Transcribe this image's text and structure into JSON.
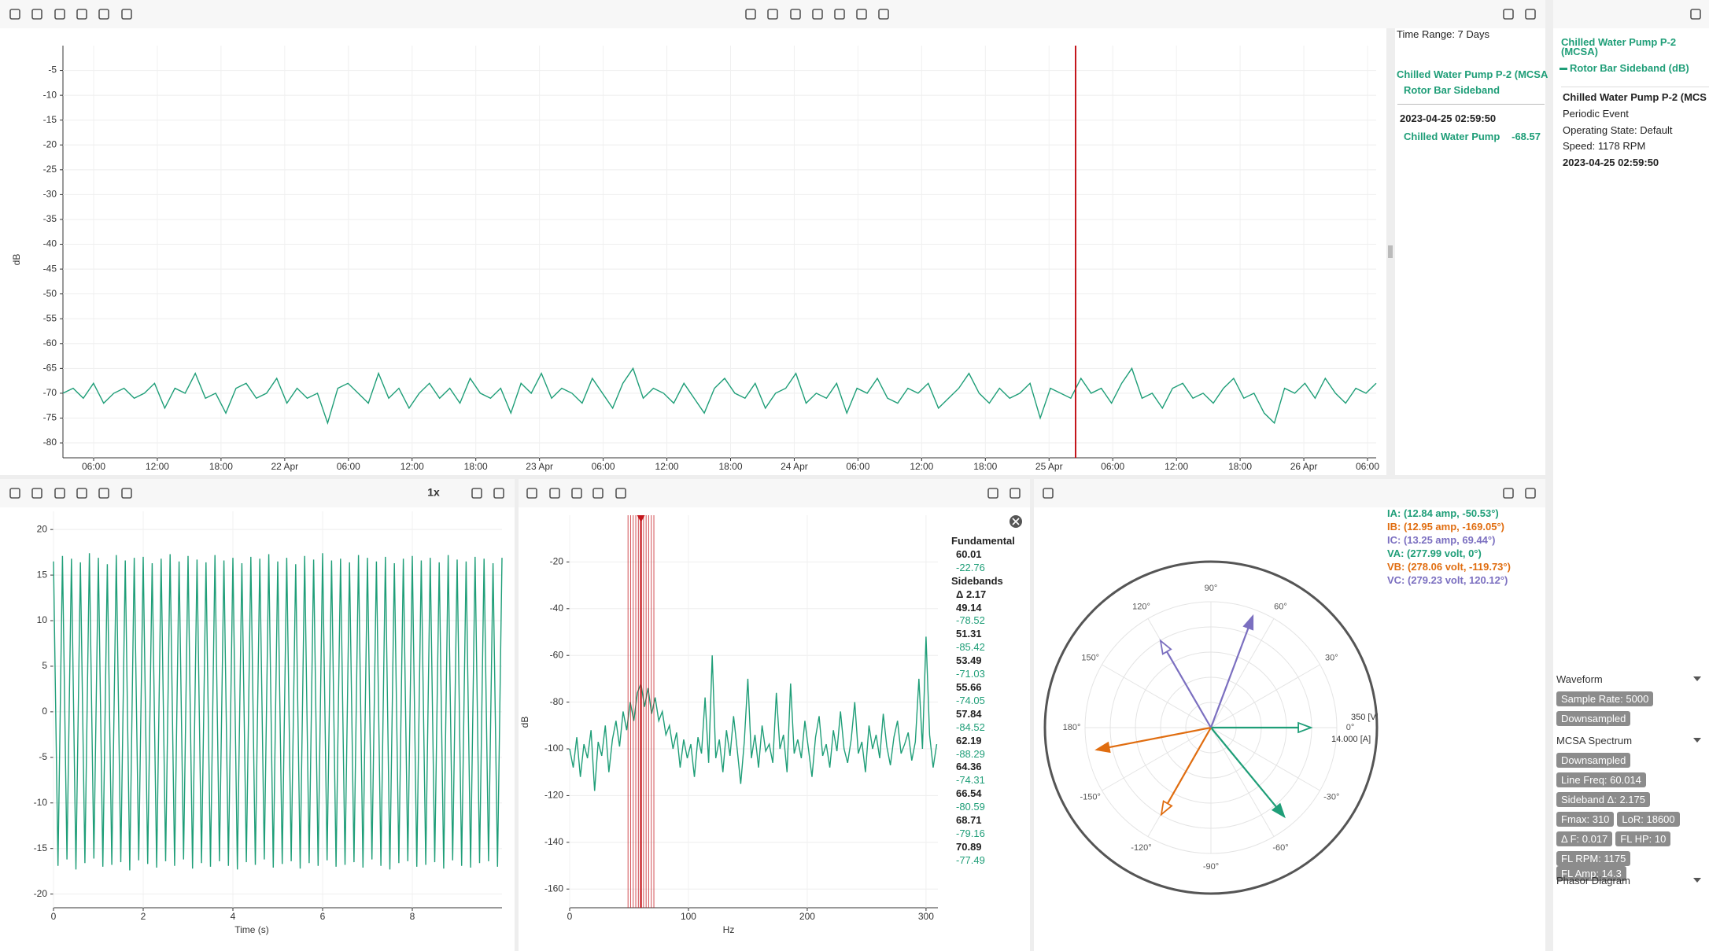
{
  "trend": {
    "type": "line",
    "y_label": "dB",
    "ylim": [
      -83,
      0
    ],
    "yticks": [
      -5,
      -10,
      -15,
      -20,
      -25,
      -30,
      -35,
      -40,
      -45,
      -50,
      -55,
      -60,
      -65,
      -70,
      -75,
      -80
    ],
    "xticks": [
      "06:00",
      "12:00",
      "18:00",
      "22 Apr",
      "06:00",
      "12:00",
      "18:00",
      "23 Apr",
      "06:00",
      "12:00",
      "18:00",
      "24 Apr",
      "06:00",
      "12:00",
      "18:00",
      "25 Apr",
      "06:00",
      "12:00",
      "18:00",
      "26 Apr",
      "06:00"
    ],
    "color": "#1f9e78",
    "cursor_color": "#c4161c",
    "values": [
      -70,
      -69,
      -71,
      -68,
      -72,
      -70,
      -69,
      -71,
      -70,
      -68,
      -73,
      -69,
      -70,
      -66,
      -71,
      -70,
      -74,
      -69,
      -68,
      -71,
      -70,
      -67,
      -72,
      -69,
      -71,
      -70,
      -76,
      -69,
      -68,
      -70,
      -72,
      -66,
      -71,
      -69,
      -73,
      -70,
      -68,
      -71,
      -69,
      -72,
      -67,
      -70,
      -71,
      -69,
      -74,
      -68,
      -70,
      -66,
      -71,
      -69,
      -70,
      -72,
      -67,
      -70,
      -73,
      -68,
      -65,
      -71,
      -69,
      -70,
      -72,
      -68,
      -71,
      -74,
      -69,
      -67,
      -70,
      -71,
      -68,
      -73,
      -70,
      -69,
      -66,
      -72,
      -70,
      -71,
      -68,
      -74,
      -69,
      -70,
      -67,
      -71,
      -72,
      -69,
      -70,
      -68,
      -73,
      -71,
      -69,
      -66,
      -70,
      -72,
      -69,
      -71,
      -70,
      -68,
      -75,
      -69,
      -70,
      -71,
      -67,
      -70,
      -69,
      -72,
      -68,
      -65,
      -71,
      -70,
      -73,
      -69,
      -68,
      -71,
      -70,
      -72,
      -69,
      -67,
      -71,
      -70,
      -74,
      -76,
      -69,
      -70,
      -68,
      -71,
      -67,
      -70,
      -72,
      -69,
      -70,
      -68
    ]
  },
  "trend_info": {
    "time_range": "Time Range: 7 Days",
    "series_title": "Chilled Water Pump P-2 (MCSA",
    "series_subtitle": "Rotor Bar Sideband",
    "timestamp": "2023-04-25 02:59:50",
    "row_name": "Chilled Water Pump",
    "row_value": -68.57
  },
  "details": {
    "legend_title": "Chilled Water Pump P-2 (MCSA)",
    "legend_item": "Rotor Bar Sideband (dB)",
    "asset": "Chilled Water Pump P-2 (MCS",
    "event": "Periodic Event",
    "state": "Operating State: Default",
    "speed": "Speed: 1178 RPM",
    "timestamp": "2023-04-25 02:59:50"
  },
  "waveform": {
    "type": "line",
    "speed_label": "1x",
    "x_label": "Time (s)",
    "xlim": [
      0,
      10
    ],
    "ylim": [
      -21.5,
      22
    ],
    "xticks": [
      0,
      2,
      4,
      6,
      8
    ],
    "yticks": [
      20,
      15,
      10,
      5,
      0,
      -5,
      -10,
      -15,
      -20
    ],
    "color": "#1f9e78",
    "x": [
      0,
      0.1,
      0.2,
      0.3,
      0.4,
      0.5,
      0.6,
      0.7,
      0.8,
      0.9,
      1,
      1.1,
      1.2,
      1.3,
      1.4,
      1.5,
      1.6,
      1.7,
      1.8,
      1.9,
      2,
      2.1,
      2.2,
      2.3,
      2.4,
      2.5,
      2.6,
      2.7,
      2.8,
      2.9,
      3,
      3.1,
      3.2,
      3.3,
      3.4,
      3.5,
      3.6,
      3.7,
      3.8,
      3.9,
      4,
      4.1,
      4.2,
      4.3,
      4.4,
      4.5,
      4.6,
      4.7,
      4.8,
      4.9,
      5,
      5.1,
      5.2,
      5.3,
      5.4,
      5.5,
      5.6,
      5.7,
      5.8,
      5.9,
      6,
      6.1,
      6.2,
      6.3,
      6.4,
      6.5,
      6.6,
      6.7,
      6.8,
      6.9,
      7,
      7.1,
      7.2,
      7.3,
      7.4,
      7.5,
      7.6,
      7.7,
      7.8,
      7.9,
      8,
      8.1,
      8.2,
      8.3,
      8.4,
      8.5,
      8.6,
      8.7,
      8.8,
      8.9,
      9,
      9.1,
      9.2,
      9.3,
      9.4,
      9.5,
      9.6,
      9.7,
      9.8,
      9.9,
      10
    ],
    "values": [
      16.5,
      -16.9,
      17.1,
      -16.2,
      16.8,
      -17.3,
      16.4,
      -16.6,
      17.4,
      -16.1,
      16.9,
      -17.0,
      16.2,
      -16.8,
      17.2,
      -16.5,
      16.6,
      -17.4,
      16.9,
      -16.3,
      17.0,
      -16.7,
      16.3,
      -17.1,
      16.8,
      -16.4,
      17.3,
      -16.9,
      16.5,
      -16.2,
      17.1,
      -17.2,
      16.7,
      -16.6,
      16.4,
      -17.0,
      17.2,
      -16.4,
      16.6,
      -16.9,
      16.9,
      -17.3,
      16.3,
      -16.5,
      17.0,
      -16.8,
      16.8,
      -16.2,
      17.3,
      -17.1,
      16.5,
      -16.7,
      16.9,
      -16.4,
      16.2,
      -17.2,
      17.1,
      -16.6,
      16.7,
      -16.9,
      17.4,
      -16.3,
      16.6,
      -17.0,
      16.8,
      -16.8,
      16.4,
      -16.5,
      17.2,
      -17.1,
      16.9,
      -16.2,
      16.5,
      -16.9,
      17.0,
      -17.3,
      16.3,
      -16.6,
      16.8,
      -16.4,
      17.1,
      -17.0,
      16.6,
      -16.8,
      16.9,
      -16.5,
      16.4,
      -17.2,
      17.2,
      -16.3,
      16.7,
      -16.9,
      16.5,
      -17.1,
      17.0,
      -16.6,
      16.8,
      -16.4,
      16.3,
      -17.0,
      16.9
    ]
  },
  "spectrum": {
    "type": "line",
    "y_label": "dB",
    "x_label": "Hz",
    "xlim": [
      0,
      310
    ],
    "ylim": [
      -168,
      0
    ],
    "xticks": [
      0,
      100,
      200,
      300
    ],
    "yticks": [
      -20,
      -40,
      -60,
      -80,
      -100,
      -120,
      -140,
      -160
    ],
    "color": "#1f9e78",
    "marker_color": "#c4161c",
    "x": [
      0,
      3,
      6,
      9,
      12,
      15,
      18,
      21,
      24,
      27,
      30,
      33,
      36,
      39,
      42,
      45,
      48,
      51,
      54,
      57,
      60,
      63,
      66,
      69,
      72,
      75,
      78,
      81,
      84,
      87,
      90,
      93,
      96,
      99,
      102,
      105,
      108,
      111,
      114,
      117,
      120,
      123,
      126,
      129,
      132,
      135,
      138,
      141,
      144,
      147,
      150,
      153,
      156,
      159,
      162,
      165,
      168,
      171,
      174,
      177,
      180,
      183,
      186,
      189,
      192,
      195,
      198,
      201,
      204,
      207,
      210,
      213,
      216,
      219,
      222,
      225,
      228,
      231,
      234,
      237,
      240,
      243,
      246,
      249,
      252,
      255,
      258,
      261,
      264,
      267,
      270,
      273,
      276,
      279,
      282,
      285,
      288,
      291,
      294,
      297,
      300,
      303,
      306,
      309
    ],
    "values": [
      -100,
      -108,
      -95,
      -112,
      -98,
      -104,
      -92,
      -118,
      -97,
      -103,
      -90,
      -110,
      -96,
      -88,
      -99,
      -84,
      -92,
      -80,
      -88,
      -76,
      -72,
      -82,
      -74,
      -85,
      -78,
      -88,
      -84,
      -94,
      -90,
      -100,
      -93,
      -108,
      -96,
      -104,
      -98,
      -112,
      -95,
      -102,
      -78,
      -106,
      -60,
      -104,
      -96,
      -110,
      -92,
      -103,
      -86,
      -100,
      -115,
      -97,
      -70,
      -104,
      -94,
      -108,
      -90,
      -101,
      -98,
      -106,
      -76,
      -100,
      -94,
      -110,
      -72,
      -102,
      -96,
      -104,
      -88,
      -100,
      -112,
      -95,
      -86,
      -103,
      -98,
      -108,
      -92,
      -101,
      -84,
      -100,
      -106,
      -96,
      -80,
      -102,
      -97,
      -110,
      -90,
      -100,
      -94,
      -104,
      -85,
      -99,
      -107,
      -95,
      -88,
      -102,
      -98,
      -93,
      -105,
      -97,
      -70,
      -100,
      -52,
      -94,
      -108,
      -98
    ],
    "fundamental": {
      "title": "Fundamental",
      "frequency": 60.01,
      "amplitude": -22.76
    },
    "sidebands": {
      "title": "Sidebands",
      "delta": "Δ 2.17",
      "items": [
        {
          "frequency": 49.14,
          "amplitude": -78.52
        },
        {
          "frequency": 51.31,
          "amplitude": -85.42
        },
        {
          "frequency": 53.49,
          "amplitude": -71.03
        },
        {
          "frequency": 55.66,
          "amplitude": -74.05
        },
        {
          "frequency": 57.84,
          "amplitude": -84.52
        },
        {
          "frequency": 62.19,
          "amplitude": -88.29
        },
        {
          "frequency": 64.36,
          "amplitude": -74.31
        },
        {
          "frequency": 66.54,
          "amplitude": -80.59
        },
        {
          "frequency": 68.71,
          "amplitude": -79.16
        },
        {
          "frequency": 70.89,
          "amplitude": -77.49
        }
      ]
    }
  },
  "phasor": {
    "type": "polar",
    "radial_max_v": {
      "value": 350,
      "label": "350 [V]"
    },
    "radial_max_a": {
      "value": 14,
      "label": "14.000 [A]"
    },
    "angles": [
      {
        "value": 90,
        "label": "90°"
      },
      {
        "value": 60,
        "label": "60°"
      },
      {
        "value": 30,
        "label": "30°"
      },
      {
        "value": 0,
        "label": "0°"
      },
      {
        "value": -30,
        "label": "-30°"
      },
      {
        "value": -60,
        "label": "-60°"
      },
      {
        "value": -90,
        "label": "-90°"
      },
      {
        "value": -120,
        "label": "-120°"
      },
      {
        "value": -150,
        "label": "-150°"
      },
      {
        "value": 180,
        "label": "180°"
      },
      {
        "value": 150,
        "label": "150°"
      },
      {
        "value": 120,
        "label": "120°"
      }
    ],
    "vectors": [
      {
        "label": "IA: (12.84 amp, -50.53°)",
        "magnitude": 12.84,
        "angle": -50.53,
        "unit": "a",
        "color": "#1f9e78"
      },
      {
        "label": "IB: (12.95 amp, -169.05°)",
        "magnitude": 12.95,
        "angle": -169.05,
        "unit": "a",
        "color": "#e06d10"
      },
      {
        "label": "IC: (13.25 amp, 69.44°)",
        "magnitude": 13.25,
        "angle": 69.44,
        "unit": "a",
        "color": "#7b6fc0"
      },
      {
        "label": "VA: (277.99 volt, 0°)",
        "magnitude": 277.99,
        "angle": 0,
        "unit": "v",
        "color": "#1f9e78"
      },
      {
        "label": "VB: (278.06 volt, -119.73°)",
        "magnitude": 278.06,
        "angle": -119.73,
        "unit": "v",
        "color": "#e06d10"
      },
      {
        "label": "VC: (279.23 volt, 120.12°)",
        "magnitude": 279.23,
        "angle": 120.12,
        "unit": "v",
        "color": "#7b6fc0"
      }
    ]
  },
  "settings": {
    "sections": [
      {
        "title": "Waveform",
        "chips": [
          [
            "Sample Rate: 5000"
          ],
          [
            "Downsampled"
          ]
        ]
      },
      {
        "title": "MCSA Spectrum",
        "chips": [
          [
            "Downsampled"
          ],
          [
            "Line Freq: 60.014"
          ],
          [
            "Sideband Δ: 2.175"
          ],
          [
            "Fmax: 310",
            "LoR: 18600"
          ],
          [
            "Δ F: 0.017",
            "FL HP: 10"
          ],
          [
            "FL RPM: 1175",
            "FL Amp: 14.3"
          ]
        ]
      },
      {
        "title": "Phasor Diagram",
        "chips": []
      }
    ]
  }
}
